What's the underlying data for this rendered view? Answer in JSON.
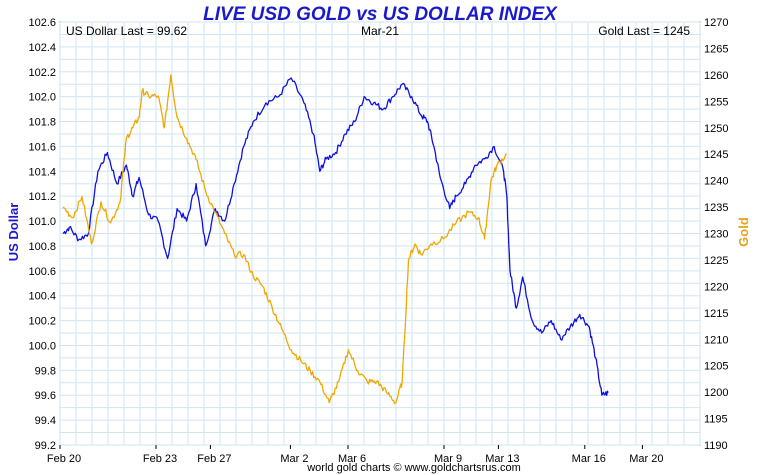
{
  "chart_data": {
    "type": "line",
    "title": "LIVE USD GOLD vs US DOLLAR INDEX",
    "header": {
      "left": "US Dollar Last = 99.62",
      "center": "Mar-21",
      "right": "Gold Last = 1245"
    },
    "ylabel_left": "US Dollar",
    "ylabel_right": "Gold",
    "footer": "world gold charts © www.goldchartsrus.com",
    "ylim_left": [
      99.2,
      102.6
    ],
    "ylim_right": [
      1190,
      1270
    ],
    "yticks_left": [
      "102.6",
      "102.4",
      "102.2",
      "102.0",
      "101.8",
      "101.6",
      "101.4",
      "101.2",
      "101.0",
      "100.8",
      "100.6",
      "100.4",
      "100.2",
      "100.0",
      "99.8",
      "99.6",
      "99.4",
      "99.2"
    ],
    "yticks_right": [
      "1270",
      "1265",
      "1260",
      "1255",
      "1250",
      "1245",
      "1240",
      "1235",
      "1230",
      "1225",
      "1220",
      "1215",
      "1210",
      "1205",
      "1200",
      "1195",
      "1190"
    ],
    "xticks": [
      {
        "label": "Feb 20",
        "pos": 0.0
      },
      {
        "label": "Feb 23",
        "pos": 0.15
      },
      {
        "label": "Feb 27",
        "pos": 0.235
      },
      {
        "label": "Mar 2",
        "pos": 0.36
      },
      {
        "label": "Mar 6",
        "pos": 0.45
      },
      {
        "label": "Mar 9",
        "pos": 0.6
      },
      {
        "label": "Mar 13",
        "pos": 0.685
      },
      {
        "label": "Mar 16",
        "pos": 0.82
      },
      {
        "label": "Mar 20",
        "pos": 0.91
      }
    ],
    "colors": {
      "usd": "#1010dd",
      "gold": "#f0a800",
      "grid": "#cfe6f2",
      "title": "#1a1acc"
    },
    "grid": true,
    "series": [
      {
        "name": "US Dollar",
        "axis": "left",
        "points": [
          [
            0.0,
            100.9
          ],
          [
            0.01,
            100.95
          ],
          [
            0.025,
            100.85
          ],
          [
            0.04,
            100.9
          ],
          [
            0.055,
            101.4
          ],
          [
            0.07,
            101.55
          ],
          [
            0.085,
            101.3
          ],
          [
            0.1,
            101.45
          ],
          [
            0.11,
            101.2
          ],
          [
            0.12,
            101.35
          ],
          [
            0.135,
            101.05
          ],
          [
            0.15,
            101.0
          ],
          [
            0.165,
            100.7
          ],
          [
            0.18,
            101.1
          ],
          [
            0.195,
            101.0
          ],
          [
            0.21,
            101.3
          ],
          [
            0.225,
            100.8
          ],
          [
            0.24,
            101.1
          ],
          [
            0.255,
            101.0
          ],
          [
            0.27,
            101.3
          ],
          [
            0.285,
            101.6
          ],
          [
            0.3,
            101.8
          ],
          [
            0.32,
            101.95
          ],
          [
            0.34,
            102.0
          ],
          [
            0.36,
            102.15
          ],
          [
            0.38,
            101.95
          ],
          [
            0.395,
            101.7
          ],
          [
            0.405,
            101.4
          ],
          [
            0.415,
            101.5
          ],
          [
            0.43,
            101.55
          ],
          [
            0.445,
            101.7
          ],
          [
            0.46,
            101.8
          ],
          [
            0.475,
            102.0
          ],
          [
            0.49,
            101.95
          ],
          [
            0.505,
            101.9
          ],
          [
            0.52,
            102.0
          ],
          [
            0.535,
            102.1
          ],
          [
            0.55,
            102.0
          ],
          [
            0.565,
            101.85
          ],
          [
            0.575,
            101.8
          ],
          [
            0.585,
            101.6
          ],
          [
            0.595,
            101.35
          ],
          [
            0.61,
            101.1
          ],
          [
            0.62,
            101.2
          ],
          [
            0.635,
            101.3
          ],
          [
            0.65,
            101.45
          ],
          [
            0.665,
            101.5
          ],
          [
            0.68,
            101.6
          ],
          [
            0.695,
            101.4
          ],
          [
            0.7,
            101.2
          ],
          [
            0.705,
            100.6
          ],
          [
            0.715,
            100.3
          ],
          [
            0.725,
            100.55
          ],
          [
            0.74,
            100.2
          ],
          [
            0.755,
            100.1
          ],
          [
            0.77,
            100.2
          ],
          [
            0.785,
            100.05
          ],
          [
            0.8,
            100.15
          ],
          [
            0.815,
            100.25
          ],
          [
            0.83,
            100.15
          ],
          [
            0.84,
            99.9
          ],
          [
            0.85,
            99.6
          ],
          [
            0.86,
            99.62
          ]
        ]
      },
      {
        "name": "Gold",
        "axis": "right",
        "points": [
          [
            0.0,
            1235
          ],
          [
            0.015,
            1233
          ],
          [
            0.03,
            1237
          ],
          [
            0.045,
            1228
          ],
          [
            0.06,
            1236
          ],
          [
            0.075,
            1232
          ],
          [
            0.09,
            1236
          ],
          [
            0.1,
            1248
          ],
          [
            0.11,
            1250
          ],
          [
            0.12,
            1252
          ],
          [
            0.125,
            1257
          ],
          [
            0.135,
            1256
          ],
          [
            0.15,
            1256
          ],
          [
            0.16,
            1250
          ],
          [
            0.17,
            1260
          ],
          [
            0.18,
            1252
          ],
          [
            0.195,
            1248
          ],
          [
            0.21,
            1244
          ],
          [
            0.225,
            1238
          ],
          [
            0.24,
            1234
          ],
          [
            0.255,
            1230
          ],
          [
            0.27,
            1226
          ],
          [
            0.285,
            1226
          ],
          [
            0.3,
            1222
          ],
          [
            0.315,
            1220
          ],
          [
            0.33,
            1216
          ],
          [
            0.345,
            1212
          ],
          [
            0.36,
            1208
          ],
          [
            0.375,
            1206
          ],
          [
            0.39,
            1204
          ],
          [
            0.405,
            1202
          ],
          [
            0.42,
            1198
          ],
          [
            0.435,
            1202
          ],
          [
            0.45,
            1208
          ],
          [
            0.465,
            1204
          ],
          [
            0.48,
            1202
          ],
          [
            0.495,
            1202
          ],
          [
            0.51,
            1200
          ],
          [
            0.525,
            1198
          ],
          [
            0.535,
            1202
          ],
          [
            0.545,
            1225
          ],
          [
            0.555,
            1228
          ],
          [
            0.565,
            1226
          ],
          [
            0.58,
            1228
          ],
          [
            0.6,
            1229
          ],
          [
            0.62,
            1232
          ],
          [
            0.64,
            1234
          ],
          [
            0.655,
            1233
          ],
          [
            0.665,
            1229
          ],
          [
            0.675,
            1240
          ],
          [
            0.685,
            1243
          ],
          [
            0.7,
            1245
          ]
        ]
      }
    ]
  }
}
